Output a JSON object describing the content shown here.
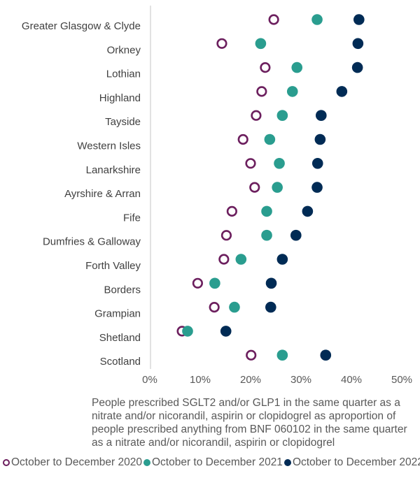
{
  "chart_data": {
    "type": "scatter",
    "orientation": "horizontal dot plot",
    "title": "",
    "xlabel": "People prescribed SGLT2 and/or GLP1 in the same quarter as a nitrate and/or nicorandil, aspirin or clopidogrel as aproportion of people prescribed anything from BNF 060102 in the same quarter as a nitrate and/or nicorandil, aspirin or clopidogrel",
    "ylabel": "",
    "xlim": [
      0,
      50
    ],
    "x_ticks": [
      "0%",
      "10%",
      "20%",
      "30%",
      "40%",
      "50%"
    ],
    "grid": false,
    "legend_placement": "bottom",
    "categories": [
      "Greater Glasgow & Clyde",
      "Orkney",
      "Lothian",
      "Highland",
      "Tayside",
      "Western Isles",
      "Lanarkshire",
      "Ayrshire & Arran",
      "Fife",
      "Dumfries & Galloway",
      "Forth Valley",
      "Borders",
      "Grampian",
      "Shetland",
      "Scotland"
    ],
    "series": [
      {
        "name": "October to December 2020",
        "color": "#6c1f5e",
        "marker": "hollow-circle",
        "values": [
          24.6,
          14.3,
          22.9,
          22.2,
          21.1,
          18.5,
          20.0,
          20.8,
          16.3,
          15.2,
          14.7,
          9.5,
          12.8,
          6.4,
          20.1
        ]
      },
      {
        "name": "October to December 2021",
        "color": "#2a9d8f",
        "marker": "filled-circle",
        "values": [
          33.2,
          22.0,
          29.2,
          28.3,
          26.3,
          23.8,
          25.7,
          25.3,
          23.2,
          23.2,
          18.1,
          12.9,
          16.8,
          7.5,
          26.3
        ]
      },
      {
        "name": "October to December 2022",
        "color": "#002b55",
        "marker": "filled-circle",
        "values": [
          41.5,
          41.3,
          41.2,
          38.1,
          34.0,
          33.8,
          33.3,
          33.2,
          31.3,
          29.0,
          26.3,
          24.1,
          24.0,
          15.1,
          34.9
        ]
      }
    ]
  }
}
